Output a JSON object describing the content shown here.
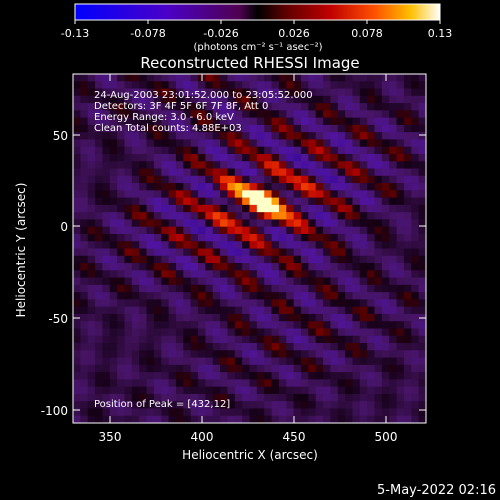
{
  "colorbar": {
    "ticks": [
      "-0.13",
      "-0.078",
      "-0.026",
      "0.026",
      "0.078",
      "0.13"
    ],
    "unit_label": "(photons cm⁻² s⁻¹ asec⁻²)",
    "range": [
      -0.13,
      0.13
    ]
  },
  "chart_data": {
    "type": "heatmap",
    "title": "Reconstructed RHESSI Image",
    "xlabel": "Heliocentric X (arcsec)",
    "ylabel": "Heliocentric Y (arcsec)",
    "xlim": [
      330,
      522
    ],
    "ylim": [
      -110,
      82
    ],
    "x_ticks": [
      "350",
      "400",
      "450",
      "500"
    ],
    "y_ticks": [
      "50",
      "0",
      "-50",
      "-100"
    ],
    "annotations": [
      "24-Aug-2003 23:01:52.000 to 23:05:52.000",
      "Detectors: 3F 4F 5F 6F 7F 8F, Att 0",
      "Energy Range: 3.0 - 6.0 keV",
      "Clean    Total counts: 4.88E+03"
    ],
    "peak_label": "Position of Peak = [432,12]",
    "peak": [
      432,
      12
    ],
    "value_range": [
      -0.13,
      0.13
    ]
  },
  "footer": {
    "date": "5-May-2022 02:16"
  }
}
